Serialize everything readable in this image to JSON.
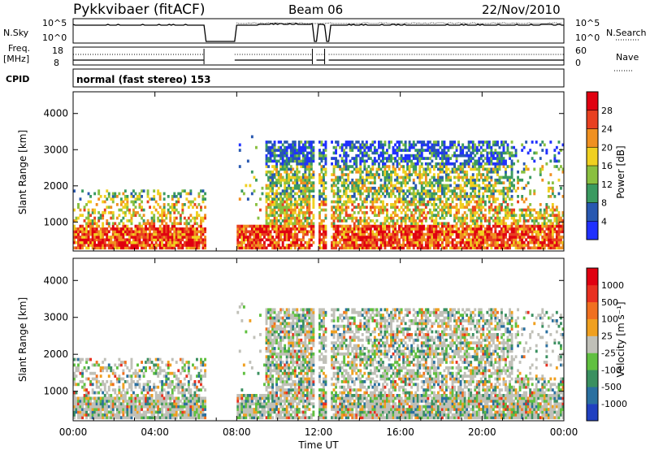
{
  "header": {
    "title": "Pykkvibaer (fitACF)",
    "beam": "Beam 06",
    "date": "22/Nov/2010"
  },
  "nsky_panel": {
    "left_label": "N.Sky",
    "left_ticks": [
      "10^5",
      "10^0"
    ],
    "right_label": "N.Search",
    "right_ticks": [
      "10^5",
      "10^0"
    ]
  },
  "freq_panel": {
    "left_label_1": "Freq.",
    "left_label_2": "[MHz]",
    "left_ticks": [
      "18",
      "8"
    ],
    "right_label": "Nave",
    "right_ticks": [
      "60",
      "0"
    ]
  },
  "cpid": {
    "label": "CPID",
    "value": "normal (fast stereo) 153"
  },
  "chart_data": [
    {
      "type": "heatmap",
      "name": "power",
      "ylabel": "Slant Range [km]",
      "yticks": [
        "1000",
        "2000",
        "3000",
        "4000"
      ],
      "ylim": [
        200,
        4600
      ],
      "xlim_hours": [
        0,
        24
      ],
      "colorbar_label": "Power [dB]",
      "colorbar_ticks": [
        "4",
        "8",
        "12",
        "16",
        "20",
        "24",
        "28"
      ],
      "colorbar_colors": [
        "#2030ff",
        "#2858b0",
        "#3a9a60",
        "#8ac040",
        "#f0d020",
        "#f09020",
        "#e84020",
        "#e00010"
      ],
      "data_gaps_hours": [
        [
          6.4,
          7.9
        ],
        [
          11.7,
          11.9
        ],
        [
          12.3,
          12.5
        ]
      ]
    },
    {
      "type": "heatmap",
      "name": "velocity",
      "ylabel": "Slant Range [km]",
      "yticks": [
        "1000",
        "2000",
        "3000",
        "4000"
      ],
      "ylim": [
        200,
        4600
      ],
      "xlim_hours": [
        0,
        24
      ],
      "xlabel": "Time UT",
      "xticks": [
        "00:00",
        "04:00",
        "08:00",
        "12:00",
        "16:00",
        "20:00",
        "00:00"
      ],
      "colorbar_label": "Velocity [m s⁻¹]",
      "colorbar_ticks": [
        "1000",
        "500",
        "100",
        "25",
        "-25",
        "-100",
        "-500",
        "-1000"
      ],
      "colorbar_colors": [
        "#2040c0",
        "#2a70a0",
        "#3a9060",
        "#60c040",
        "#c0c0b8",
        "#f0a020",
        "#f07020",
        "#e83020",
        "#e00010"
      ]
    }
  ]
}
